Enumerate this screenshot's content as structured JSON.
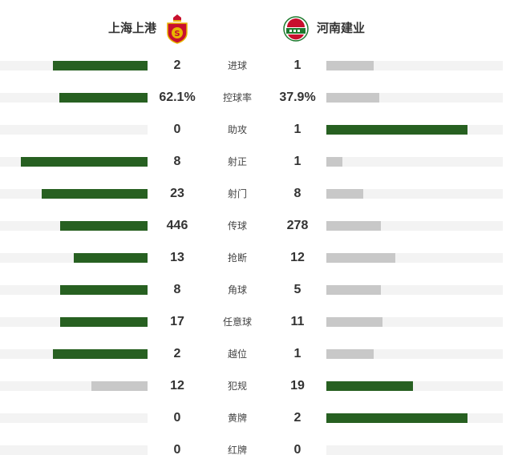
{
  "colors": {
    "leader_bar": "#276021",
    "trailer_bar": "#c8c8c8",
    "track": "#f3f3f3"
  },
  "home": {
    "name": "上海上港",
    "logo_icon": "shanghai-sipg-crest-icon",
    "logo_text": "S"
  },
  "away": {
    "name": "河南建业",
    "logo_icon": "henan-jianye-crest-icon"
  },
  "stats": [
    {
      "label": "进球",
      "home": "2",
      "away": "1",
      "home_fill": 0.64,
      "away_fill": 0.27
    },
    {
      "label": "控球率",
      "home": "62.1%",
      "away": "37.9%",
      "home_fill": 0.6,
      "away_fill": 0.3
    },
    {
      "label": "助攻",
      "home": "0",
      "away": "1",
      "home_fill": 0,
      "away_fill": 0.8
    },
    {
      "label": "射正",
      "home": "8",
      "away": "1",
      "home_fill": 0.86,
      "away_fill": 0.09
    },
    {
      "label": "射门",
      "home": "23",
      "away": "8",
      "home_fill": 0.72,
      "away_fill": 0.21
    },
    {
      "label": "传球",
      "home": "446",
      "away": "278",
      "home_fill": 0.59,
      "away_fill": 0.31
    },
    {
      "label": "抢断",
      "home": "13",
      "away": "12",
      "home_fill": 0.5,
      "away_fill": 0.39
    },
    {
      "label": "角球",
      "home": "8",
      "away": "5",
      "home_fill": 0.59,
      "away_fill": 0.31
    },
    {
      "label": "任意球",
      "home": "17",
      "away": "11",
      "home_fill": 0.59,
      "away_fill": 0.32
    },
    {
      "label": "越位",
      "home": "2",
      "away": "1",
      "home_fill": 0.64,
      "away_fill": 0.27
    },
    {
      "label": "犯规",
      "home": "12",
      "away": "19",
      "home_fill": 0.38,
      "away_fill": 0.49
    },
    {
      "label": "黄牌",
      "home": "0",
      "away": "2",
      "home_fill": 0,
      "away_fill": 0.8
    },
    {
      "label": "红牌",
      "home": "0",
      "away": "0",
      "home_fill": 0,
      "away_fill": 0
    }
  ]
}
